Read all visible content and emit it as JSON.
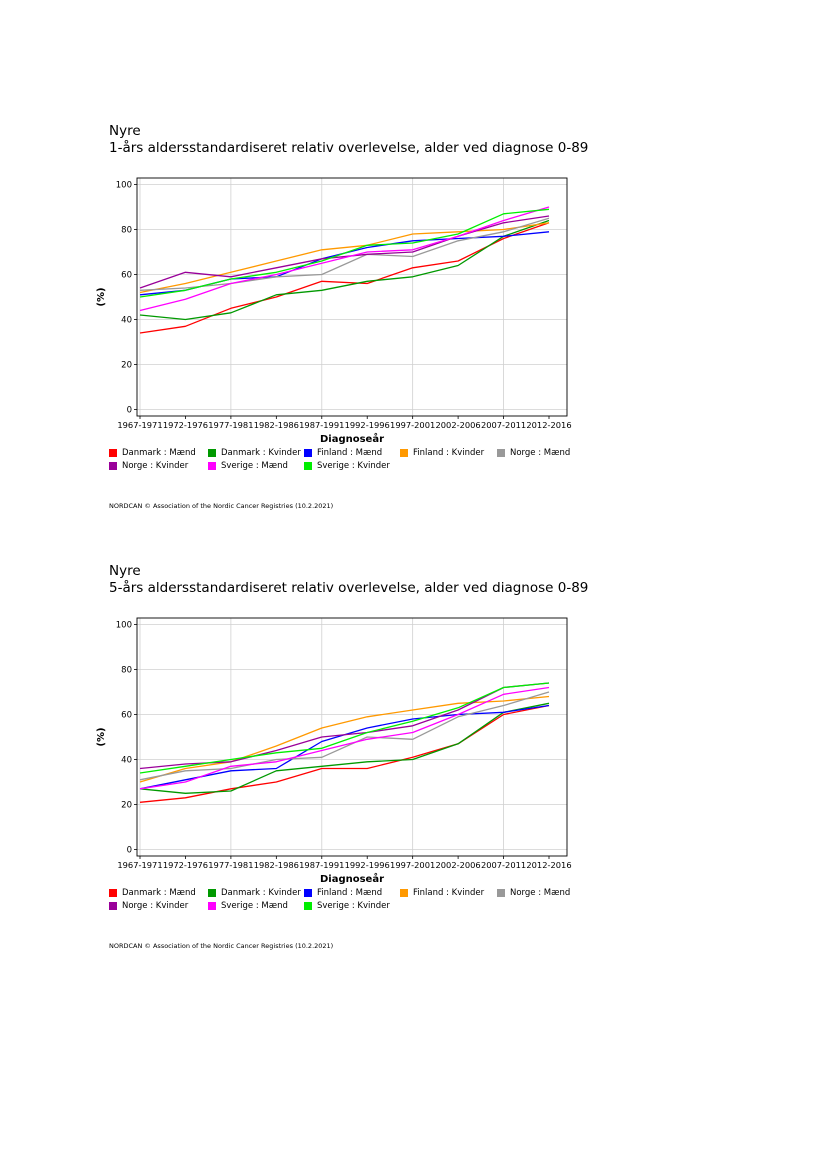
{
  "charts": [
    {
      "title_line1": "Nyre",
      "title_line2": "1-års aldersstandardiseret relativ overlevelse, alder ved diagnose 0-89",
      "footer": "NORDCAN © Association of the Nordic Cancer Registries (10.2.2021)"
    },
    {
      "title_line1": "Nyre",
      "title_line2": "5-års aldersstandardiseret relativ overlevelse, alder ved diagnose 0-89",
      "footer": "NORDCAN © Association of the Nordic Cancer Registries (10.2.2021)"
    }
  ],
  "chart_data": [
    {
      "type": "line",
      "title": "1-års aldersstandardiseret relativ overlevelse, alder ved diagnose 0-89",
      "xlabel": "Diagnoseår",
      "ylabel": "(%)",
      "ylim": [
        0,
        100
      ],
      "yticks": [
        0,
        20,
        40,
        60,
        80,
        100
      ],
      "grid": true,
      "legend_position": "bottom",
      "categories": [
        "1967-1971",
        "1972-1976",
        "1977-1981",
        "1982-1986",
        "1987-1991",
        "1992-1996",
        "1997-2001",
        "2002-2006",
        "2007-2011",
        "2012-2016"
      ],
      "series": [
        {
          "name": "Danmark : Mænd",
          "color": "#ff0000",
          "values": [
            34,
            37,
            45,
            50,
            57,
            56,
            63,
            66,
            76,
            83
          ]
        },
        {
          "name": "Danmark : Kvinder",
          "color": "#009900",
          "values": [
            42,
            40,
            43,
            51,
            53,
            57,
            59,
            64,
            77,
            84
          ]
        },
        {
          "name": "Finland : Mænd",
          "color": "#0000ff",
          "values": [
            51,
            53,
            58,
            59,
            67,
            72,
            75,
            76,
            77,
            79
          ]
        },
        {
          "name": "Finland : Kvinder",
          "color": "#ff9900",
          "values": [
            52,
            56,
            61,
            66,
            71,
            73,
            78,
            79,
            80,
            83
          ]
        },
        {
          "name": "Norge : Mænd",
          "color": "#999999",
          "values": [
            53,
            54,
            56,
            59,
            60,
            69,
            68,
            75,
            79,
            85
          ]
        },
        {
          "name": "Norge : Kvinder",
          "color": "#990099",
          "values": [
            54,
            61,
            59,
            63,
            67,
            69,
            70,
            77,
            83,
            86
          ]
        },
        {
          "name": "Sverige : Mænd",
          "color": "#ff00ff",
          "values": [
            44,
            49,
            56,
            60,
            65,
            70,
            71,
            77,
            84,
            90
          ]
        },
        {
          "name": "Sverige : Kvinder",
          "color": "#00ee00",
          "values": [
            50,
            53,
            58,
            61,
            66,
            73,
            74,
            78,
            87,
            89
          ]
        }
      ]
    },
    {
      "type": "line",
      "title": "5-års aldersstandardiseret relativ overlevelse, alder ved diagnose 0-89",
      "xlabel": "Diagnoseår",
      "ylabel": "(%)",
      "ylim": [
        0,
        100
      ],
      "yticks": [
        0,
        20,
        40,
        60,
        80,
        100
      ],
      "grid": true,
      "legend_position": "bottom",
      "categories": [
        "1967-1971",
        "1972-1976",
        "1977-1981",
        "1982-1986",
        "1987-1991",
        "1992-1996",
        "1997-2001",
        "2002-2006",
        "2007-2011",
        "2012-2016"
      ],
      "series": [
        {
          "name": "Danmark : Mænd",
          "color": "#ff0000",
          "values": [
            21,
            23,
            27,
            30,
            36,
            36,
            41,
            47,
            60,
            64
          ]
        },
        {
          "name": "Danmark : Kvinder",
          "color": "#009900",
          "values": [
            27,
            25,
            26,
            35,
            37,
            39,
            40,
            47,
            61,
            65
          ]
        },
        {
          "name": "Finland : Mænd",
          "color": "#0000ff",
          "values": [
            27,
            31,
            35,
            36,
            48,
            54,
            58,
            60,
            61,
            64
          ]
        },
        {
          "name": "Finland : Kvinder",
          "color": "#ff9900",
          "values": [
            30,
            36,
            39,
            46,
            54,
            59,
            62,
            65,
            66,
            68
          ]
        },
        {
          "name": "Norge : Mænd",
          "color": "#999999",
          "values": [
            31,
            35,
            36,
            40,
            41,
            50,
            49,
            59,
            64,
            70
          ]
        },
        {
          "name": "Norge : Kvinder",
          "color": "#990099",
          "values": [
            36,
            38,
            39,
            44,
            50,
            52,
            55,
            62,
            72,
            74
          ]
        },
        {
          "name": "Sverige : Mænd",
          "color": "#ff00ff",
          "values": [
            27,
            30,
            37,
            39,
            44,
            49,
            52,
            60,
            69,
            72
          ]
        },
        {
          "name": "Sverige : Kvinder",
          "color": "#00ee00",
          "values": [
            34,
            37,
            40,
            43,
            45,
            52,
            57,
            63,
            72,
            74
          ]
        }
      ]
    }
  ]
}
